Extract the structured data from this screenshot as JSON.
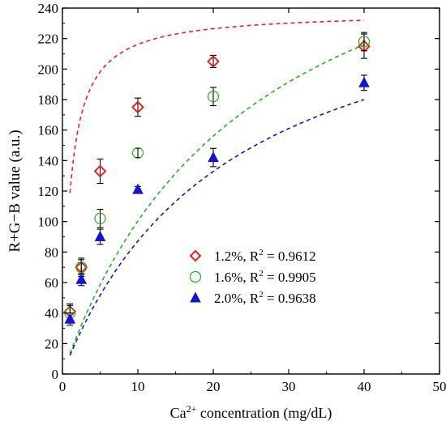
{
  "chart_data": {
    "type": "scatter",
    "title": "",
    "xlabel": {
      "base": "Ca",
      "sup": "2+",
      "rest": " concentration (mg/dL)"
    },
    "ylabel": "R+G−B value (a.u.)",
    "xlim": [
      0,
      50
    ],
    "ylim": [
      0,
      240
    ],
    "x_ticks": [
      0,
      10,
      20,
      30,
      40,
      50
    ],
    "y_ticks": [
      0,
      20,
      40,
      60,
      80,
      100,
      120,
      140,
      160,
      180,
      200,
      220,
      240
    ],
    "grid": false,
    "legend_position": "center-right",
    "series": [
      {
        "name": "1.2%, R",
        "r2": "2",
        "r2_value": " = 0.9612",
        "marker": "diamond",
        "color": "#e8231f",
        "x": [
          1.0,
          2.5,
          5.0,
          10.0,
          20.0,
          40.0
        ],
        "y": [
          41,
          70,
          133,
          175,
          205,
          215
        ],
        "err": [
          5,
          6,
          8,
          6,
          4,
          8
        ],
        "fit": {
          "a": 69.0,
          "b": 1.0,
          "xstart": 1.0,
          "xend": 40.0
        }
      },
      {
        "name": "1.6%, R",
        "r2": "2",
        "r2_value": " = 0.9905",
        "marker": "circle",
        "color": "#22b022",
        "x": [
          1.0,
          2.5,
          5.0,
          10.0,
          20.0,
          40.0
        ],
        "y": [
          40,
          70,
          102,
          145,
          182,
          218
        ],
        "err": [
          5,
          5,
          6,
          3,
          6,
          6
        ],
        "fit": {
          "a": 51.0,
          "b": 25.0,
          "xstart": 1.0,
          "xend": 40.0
        }
      },
      {
        "name": "2.0%, R",
        "r2": "2",
        "r2_value": " = 0.9638",
        "marker": "triangle",
        "color": "#1515cc",
        "x": [
          1.0,
          2.5,
          5.0,
          10.0,
          20.0,
          40.0
        ],
        "y": [
          36,
          62,
          90,
          121,
          142,
          191
        ],
        "err": [
          4,
          4,
          5,
          2,
          6,
          5
        ],
        "fit": {
          "a": 42.5,
          "b": 22.0,
          "xstart": 1.0,
          "xend": 40.0
        }
      }
    ]
  }
}
